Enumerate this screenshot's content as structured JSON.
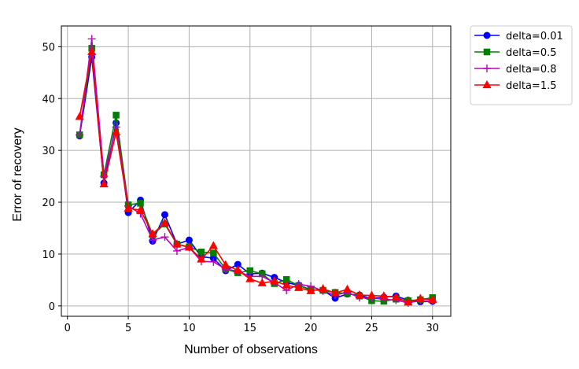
{
  "chart_data": {
    "type": "line",
    "title": "",
    "xlabel": "Number of observations",
    "ylabel": "Error of recovery",
    "xlim": [
      -0.5,
      31.5
    ],
    "ylim": [
      -2,
      54
    ],
    "xticks": [
      0,
      5,
      10,
      15,
      20,
      25,
      30
    ],
    "yticks": [
      0,
      10,
      20,
      30,
      40,
      50
    ],
    "grid": true,
    "legend_position": "outside-top-right",
    "x": [
      1,
      2,
      3,
      4,
      5,
      6,
      7,
      8,
      9,
      10,
      11,
      12,
      13,
      14,
      15,
      16,
      17,
      18,
      19,
      20,
      21,
      22,
      23,
      24,
      25,
      26,
      27,
      28,
      29,
      30
    ],
    "series": [
      {
        "name": "delta=0.01",
        "color": "#0000ff",
        "marker": "circle",
        "values": [
          32.8,
          48.0,
          23.7,
          35.3,
          18.0,
          20.4,
          12.5,
          17.6,
          11.9,
          12.7,
          9.5,
          9.2,
          6.8,
          8.0,
          6.2,
          6.3,
          5.5,
          4.5,
          4.0,
          3.1,
          3.0,
          1.5,
          2.3,
          2.1,
          1.4,
          1.7,
          1.9,
          1.1,
          0.8,
          0.9
        ]
      },
      {
        "name": "delta=0.5",
        "color": "#008000",
        "marker": "square",
        "values": [
          33.0,
          49.7,
          25.3,
          36.8,
          19.5,
          19.8,
          13.7,
          15.8,
          11.9,
          11.4,
          10.4,
          10.2,
          7.1,
          6.4,
          6.8,
          6.2,
          4.3,
          5.1,
          3.9,
          3.1,
          3.0,
          2.6,
          2.4,
          1.9,
          1.0,
          0.9,
          1.3,
          1.0,
          1.2,
          1.6
        ]
      },
      {
        "name": "delta=0.8",
        "color": "#bf00bf",
        "marker": "plus",
        "values": [
          33.0,
          51.5,
          25.0,
          34.5,
          19.3,
          17.8,
          12.7,
          13.3,
          10.6,
          11.3,
          8.6,
          8.5,
          7.1,
          6.7,
          5.7,
          5.7,
          4.5,
          3.0,
          4.2,
          3.8,
          2.9,
          2.1,
          2.6,
          1.6,
          1.5,
          1.3,
          1.1,
          0.6,
          1.0,
          0.9
        ]
      },
      {
        "name": "delta=1.5",
        "color": "#ff0000",
        "marker": "triangle",
        "values": [
          36.5,
          49.0,
          23.5,
          33.5,
          18.8,
          18.5,
          13.9,
          16.0,
          11.9,
          11.3,
          9.0,
          11.6,
          7.9,
          6.9,
          5.2,
          4.4,
          4.8,
          4.0,
          3.5,
          2.9,
          3.3,
          2.5,
          3.2,
          2.1,
          2.0,
          1.9,
          1.7,
          0.7,
          1.4,
          1.2
        ]
      }
    ]
  }
}
